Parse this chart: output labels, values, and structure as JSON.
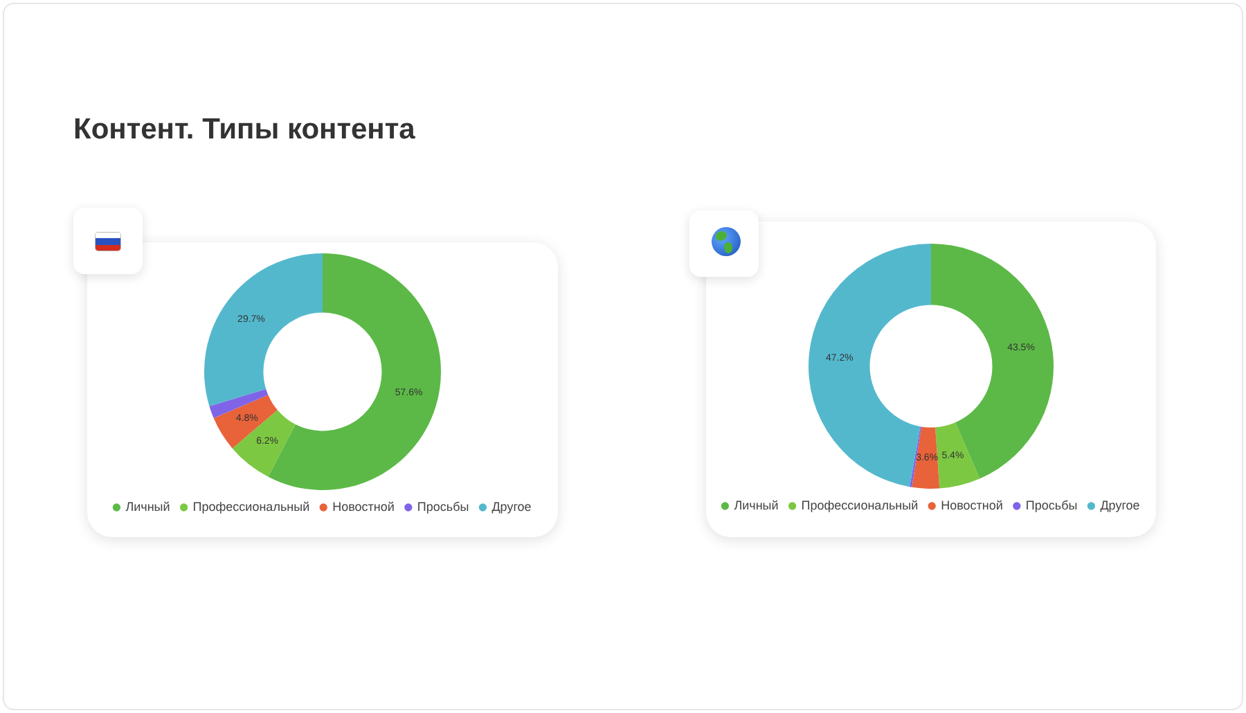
{
  "chart_data": [
    {
      "type": "donut",
      "title": "Контент. Типы контента",
      "categories": [
        "Личный",
        "Профессиональный",
        "Новостной",
        "Просьбы",
        "Другое"
      ],
      "values": [
        57.6,
        6.2,
        4.8,
        1.7,
        29.7
      ],
      "colors": [
        "#5cb947",
        "#7dc843",
        "#e8623a",
        "#8064e8",
        "#54b8cd"
      ],
      "value_labels": [
        "57.6%",
        "6.2%",
        "4.8%",
        null,
        "29.7%"
      ],
      "legend": "bottom"
    },
    {
      "type": "donut",
      "categories": [
        "Личный",
        "Профессиональный",
        "Новостной",
        "Просьбы",
        "Другое"
      ],
      "values": [
        43.5,
        5.4,
        3.6,
        0.3,
        47.2
      ],
      "colors": [
        "#5cb947",
        "#7dc843",
        "#e8623a",
        "#8064e8",
        "#54b8cd"
      ],
      "value_labels": [
        "43.5%",
        "5.4%",
        "3.6%",
        null,
        "47.2%"
      ],
      "legend": "bottom"
    }
  ]
}
